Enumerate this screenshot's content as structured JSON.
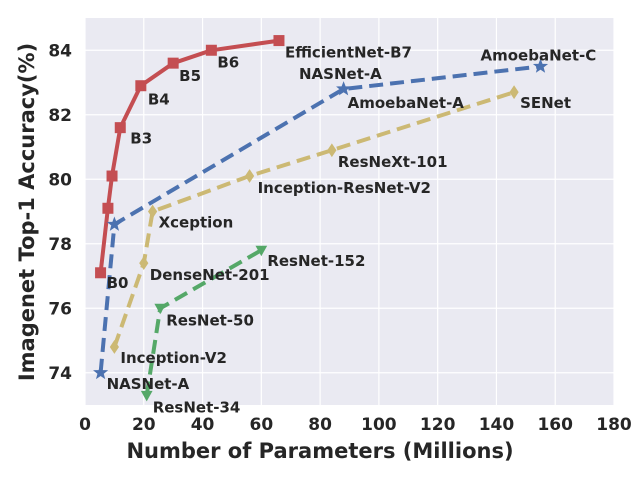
{
  "chart_data": {
    "type": "line",
    "xlabel": "Number of Parameters (Millions)",
    "ylabel": "Imagenet Top-1 Accuracy(%)",
    "xlim": [
      0,
      180
    ],
    "ylim": [
      73,
      85
    ],
    "x_ticks": [
      0,
      20,
      40,
      60,
      80,
      100,
      120,
      140,
      160,
      180
    ],
    "y_ticks": [
      74,
      76,
      78,
      80,
      82,
      84
    ],
    "grid": true,
    "colors": {
      "background": "#eaeaf2",
      "grid": "#ffffff",
      "efficientnet": "#c44e52",
      "blue": "#4c72b0",
      "gold": "#ccb974",
      "green": "#55a868"
    },
    "series": [
      {
        "key": "efficientnet",
        "line": "solid",
        "marker": "square",
        "points": [
          {
            "x": 5.3,
            "y": 77.1,
            "label": "B0"
          },
          {
            "x": 7.8,
            "y": 79.1,
            "label": ""
          },
          {
            "x": 9.2,
            "y": 80.1,
            "label": ""
          },
          {
            "x": 12,
            "y": 81.6,
            "label": "B3"
          },
          {
            "x": 19,
            "y": 82.9,
            "label": "B4"
          },
          {
            "x": 30,
            "y": 83.6,
            "label": "B5"
          },
          {
            "x": 43,
            "y": 84.0,
            "label": "B6"
          },
          {
            "x": 66,
            "y": 84.3,
            "label": "EfficientNet-B7"
          }
        ]
      },
      {
        "key": "blue",
        "line": "dashed",
        "marker": "star",
        "points": [
          {
            "x": 5.3,
            "y": 74.0,
            "label": "NASNet-A"
          },
          {
            "x": 10,
            "y": 78.6,
            "label": ""
          },
          {
            "x": 88,
            "y": 82.8,
            "label": "AmoebaNet-A"
          },
          {
            "x": 155,
            "y": 83.5,
            "label": "AmoebaNet-C"
          }
        ],
        "extra_labels": [
          "NASNet-A"
        ]
      },
      {
        "key": "gold",
        "line": "dashed",
        "marker": "diamond",
        "points": [
          {
            "x": 10,
            "y": 74.8,
            "label": "Inception-V2"
          },
          {
            "x": 20,
            "y": 77.4,
            "label": "DenseNet-201"
          },
          {
            "x": 23,
            "y": 79.0,
            "label": "Xception"
          },
          {
            "x": 56,
            "y": 80.1,
            "label": "Inception-ResNet-V2"
          },
          {
            "x": 84,
            "y": 80.9,
            "label": "ResNeXt-101"
          },
          {
            "x": 146,
            "y": 82.7,
            "label": "SENet"
          }
        ]
      },
      {
        "key": "green",
        "line": "dashed",
        "marker": "triangle-down",
        "points": [
          {
            "x": 21,
            "y": 73.3,
            "label": "ResNet-34"
          },
          {
            "x": 25.6,
            "y": 76.0,
            "label": "ResNet-50"
          },
          {
            "x": 60,
            "y": 77.8,
            "label": "ResNet-152"
          }
        ]
      }
    ]
  }
}
